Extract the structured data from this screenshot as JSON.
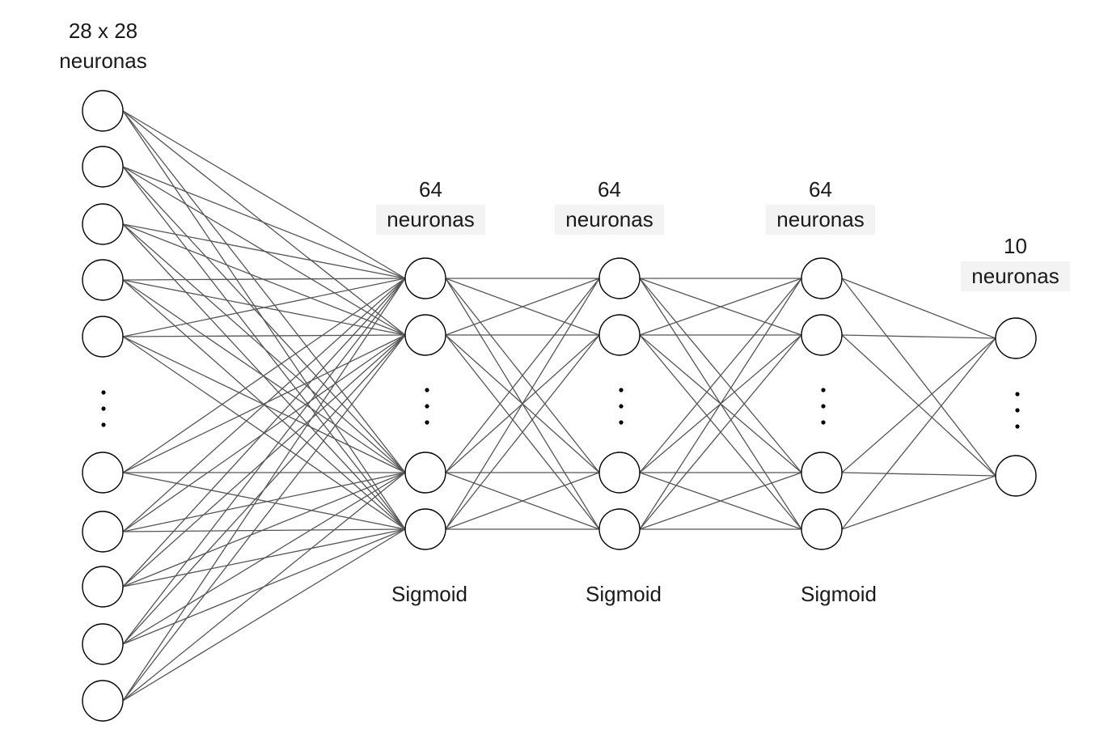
{
  "layers": [
    {
      "title_line1": "28 x 28",
      "title_line2": "neuronas",
      "activation": ""
    },
    {
      "title_line1": "64",
      "title_line2": "neuronas",
      "activation": "Sigmoid"
    },
    {
      "title_line1": "64",
      "title_line2": "neuronas",
      "activation": "Sigmoid"
    },
    {
      "title_line1": "64",
      "title_line2": "neuronas",
      "activation": "Sigmoid"
    },
    {
      "title_line1": "10",
      "title_line2": "neuronas",
      "activation": ""
    }
  ],
  "ellipsis": "⋮",
  "colors": {
    "edge": "#555555",
    "node_stroke": "#000000",
    "node_fill": "#ffffff",
    "text": "#1a1a1a"
  }
}
